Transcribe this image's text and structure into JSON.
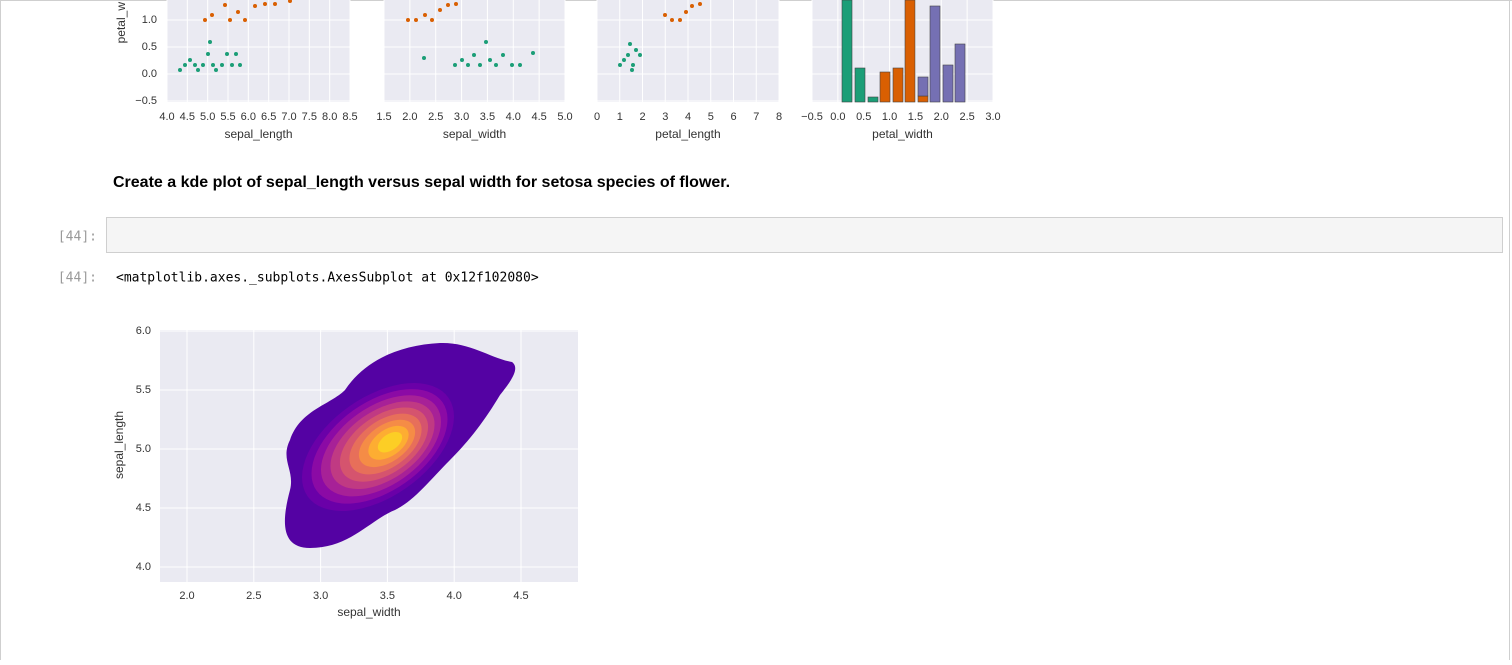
{
  "top_plots": {
    "y_label": "petal_w",
    "yticks": [
      "1.0",
      "0.5",
      "0.0",
      "−0.5"
    ],
    "panels": [
      {
        "xlabel": "sepal_length",
        "xticks": [
          "4.0",
          "4.5",
          "5.0",
          "5.5",
          "6.0",
          "6.5",
          "7.0",
          "7.5",
          "8.0",
          "8.5"
        ]
      },
      {
        "xlabel": "sepal_width",
        "xticks": [
          "1.5",
          "2.0",
          "2.5",
          "3.0",
          "3.5",
          "4.0",
          "4.5",
          "5.0"
        ]
      },
      {
        "xlabel": "petal_length",
        "xticks": [
          "0",
          "1",
          "2",
          "3",
          "4",
          "5",
          "6",
          "7",
          "8"
        ]
      },
      {
        "xlabel": "petal_width",
        "xticks": [
          "−0.5",
          "0.0",
          "0.5",
          "1.0",
          "1.5",
          "2.0",
          "2.5",
          "3.0"
        ]
      }
    ]
  },
  "markdown": "Create a kde plot of sepal_length versus sepal width for setosa species of flower.",
  "input_cell": {
    "prompt": "[44]:"
  },
  "output_cell": {
    "prompt": "[44]:",
    "text": "<matplotlib.axes._subplots.AxesSubplot at 0x12f102080>"
  },
  "kde_plot": {
    "xlabel": "sepal_width",
    "ylabel": "sepal_length",
    "xticks": [
      "2.0",
      "2.5",
      "3.0",
      "3.5",
      "4.0",
      "4.5"
    ],
    "yticks": [
      "4.0",
      "4.5",
      "5.0",
      "5.5",
      "6.0"
    ]
  }
}
